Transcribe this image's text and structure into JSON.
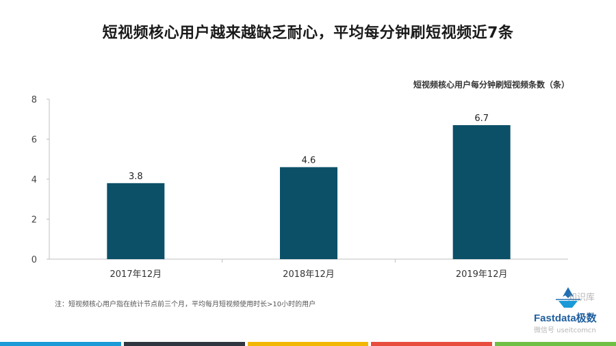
{
  "page": {
    "title": "短视频核心用户越来越缺乏耐心，平均每分钟刷短视频近7条",
    "note": "注：短视频核心用户指在统计节点前三个月，平均每月短视频使用时长>10小时的用户",
    "logo_text": "Fastdata极数",
    "watermark_top": "知识库",
    "watermark_bottom": "微信号 useitcomcn",
    "footer_colors": [
      "#1a9ad6",
      "#2f3640",
      "#f2b705",
      "#e74c3c",
      "#6fbf44"
    ]
  },
  "chart_data": {
    "type": "bar",
    "title": "短视频核心用户每分钟刷短视频条数（条）",
    "categories": [
      "2017年12月",
      "2018年12月",
      "2019年12月"
    ],
    "values": [
      3.8,
      4.6,
      6.7
    ],
    "value_labels": [
      "3.8",
      "4.6",
      "6.7"
    ],
    "ylim": [
      0,
      8
    ],
    "yticks": [
      "0",
      "2",
      "4",
      "6",
      "8"
    ],
    "bar_color": "#0c5068",
    "grid": false,
    "legend": "none"
  }
}
